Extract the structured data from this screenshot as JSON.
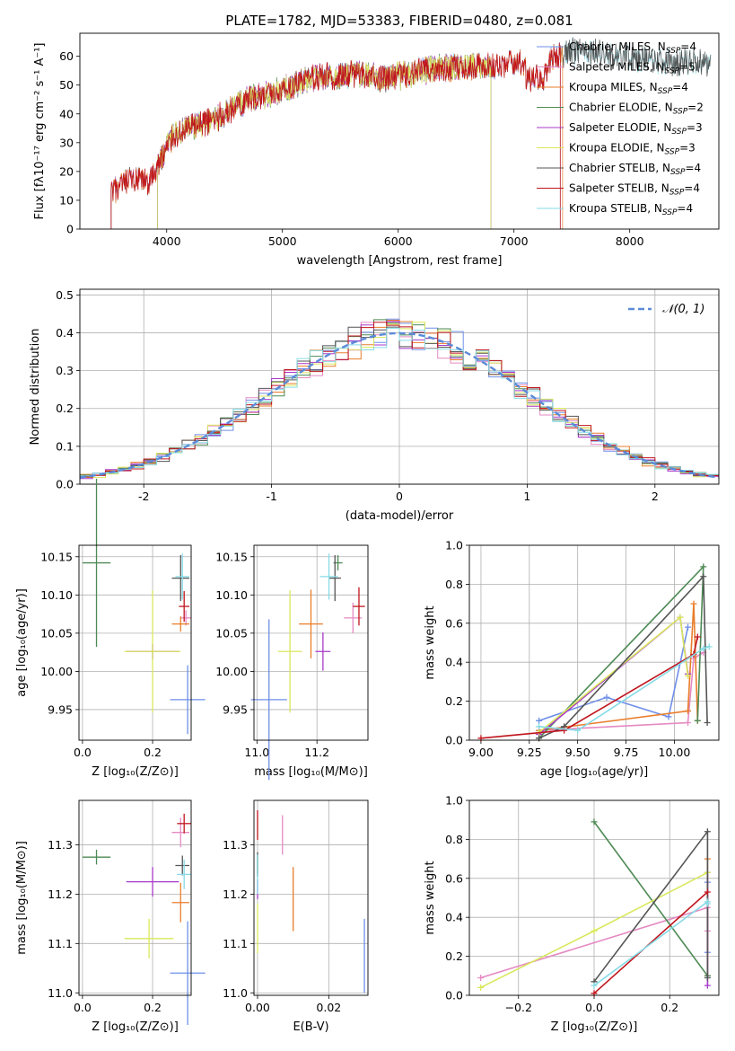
{
  "colors": {
    "Chabrier MILES": "#6f8fe8",
    "Salpeter MILES": "#e58ac3",
    "Kroupa MILES": "#e97d2b",
    "Chabrier ELODIE": "#4e8a55",
    "Salpeter ELODIE": "#a839c9",
    "Kroupa ELODIE": "#d9e85c",
    "Chabrier STELIB": "#555555",
    "Salpeter STELIB": "#c0151d",
    "Kroupa STELIB": "#86dbe6"
  },
  "chart_data": [
    {
      "id": "spectrum",
      "type": "line",
      "title": "PLATE=1782, MJD=53383, FIBERID=0480, z=0.081",
      "xlabel": "wavelength [Angstrom, rest frame]",
      "ylabel": "Flux [fλ10⁻¹⁷ erg cm⁻² s⁻¹ A⁻¹]",
      "xlim": [
        3250,
        8770
      ],
      "ylim": [
        0,
        68
      ],
      "xticks": [
        4000,
        5000,
        6000,
        7000,
        8000
      ],
      "yticks": [
        0,
        10,
        20,
        30,
        40,
        50,
        60
      ],
      "continuum": [
        [
          3500,
          12
        ],
        [
          3700,
          17
        ],
        [
          3850,
          16
        ],
        [
          3950,
          24
        ],
        [
          4050,
          32
        ],
        [
          4200,
          35
        ],
        [
          4350,
          37
        ],
        [
          4500,
          40
        ],
        [
          4700,
          45
        ],
        [
          4900,
          47
        ],
        [
          5100,
          50
        ],
        [
          5300,
          53
        ],
        [
          5500,
          53
        ],
        [
          5700,
          54
        ],
        [
          5900,
          52
        ],
        [
          6100,
          54
        ],
        [
          6300,
          56
        ],
        [
          6500,
          56
        ],
        [
          6700,
          57
        ],
        [
          6900,
          57
        ],
        [
          7100,
          58
        ],
        [
          7300,
          59
        ],
        [
          7500,
          62
        ],
        [
          7700,
          61
        ],
        [
          7900,
          60
        ],
        [
          8100,
          59
        ],
        [
          8300,
          58
        ]
      ],
      "series": [
        {
          "name": "Chabrier MILES",
          "label_sub": "SSP",
          "label_tail": "=4",
          "xstart": 3520,
          "xend": 7400
        },
        {
          "name": "Salpeter MILES",
          "label_sub": "SSP",
          "label_tail": "=5",
          "xstart": 3520,
          "xend": 7400
        },
        {
          "name": "Kroupa MILES",
          "label_sub": "SSP",
          "label_tail": "=4",
          "xstart": 3520,
          "xend": 7420
        },
        {
          "name": "Chabrier ELODIE",
          "label_sub": "SSP",
          "label_tail": "=2",
          "xstart": 3920,
          "xend": 6800
        },
        {
          "name": "Salpeter ELODIE",
          "label_sub": "SSP",
          "label_tail": "=3",
          "xstart": 3920,
          "xend": 6800
        },
        {
          "name": "Kroupa ELODIE",
          "label_sub": "SSP",
          "label_tail": "=3",
          "xstart": 3920,
          "xend": 6800
        },
        {
          "name": "Chabrier STELIB",
          "label_sub": "SSP",
          "label_tail": "=4",
          "xstart": 3520,
          "xend": 8700
        },
        {
          "name": "Salpeter STELIB",
          "label_sub": "SSP",
          "label_tail": "=4",
          "xstart": 3520,
          "xend": 7400
        },
        {
          "name": "Kroupa STELIB",
          "label_sub": "SSP",
          "label_tail": "=4",
          "xstart": 3520,
          "xend": 8700
        }
      ],
      "legend": "top-right"
    },
    {
      "id": "residuals",
      "type": "line",
      "xlabel": "(data-model)/error",
      "ylabel": "Normed distribution",
      "xlim": [
        -2.5,
        2.5
      ],
      "ylim": [
        0,
        0.515
      ],
      "xticks": [
        -2,
        -1,
        0,
        1,
        2
      ],
      "yticks": [
        0.0,
        0.1,
        0.2,
        0.3,
        0.4,
        0.5
      ],
      "bin_width": 0.1,
      "reference": {
        "name": "𝒩(0, 1)",
        "style": "dashed",
        "color": "#5b8bd8"
      },
      "series_count": 9,
      "legend": "top-right",
      "grid": true
    },
    {
      "id": "age_vs_Z",
      "type": "scatter",
      "xlabel": "Z [log₁₀(Z/Z⊙)]",
      "ylabel": "age  [log₁₀(age/yr)]",
      "xlim": [
        -0.01,
        0.31
      ],
      "ylim": [
        9.91,
        10.165
      ],
      "xticks": [
        0.0,
        0.2
      ],
      "yticks": [
        9.95,
        10.0,
        10.05,
        10.1,
        10.15
      ],
      "points": [
        {
          "series": "Chabrier MILES",
          "x": 0.3,
          "xerr": 0.05,
          "y": 9.963,
          "yerr": 0.045
        },
        {
          "series": "Salpeter MILES",
          "x": 0.295,
          "xerr": 0.015,
          "y": 10.07,
          "yerr": 0.01
        },
        {
          "series": "Kroupa MILES",
          "x": 0.28,
          "xerr": 0.025,
          "y": 10.062,
          "yerr": 0.01
        },
        {
          "series": "Chabrier ELODIE",
          "x": 0.04,
          "xerr": 0.04,
          "y": 10.142,
          "yerr": 0.11
        },
        {
          "series": "Salpeter ELODIE",
          "x": 0.2,
          "xerr": 0.075,
          "y": 10.026,
          "yerr": 0.01
        },
        {
          "series": "Kroupa ELODIE",
          "x": 0.2,
          "xerr": 0.08,
          "y": 10.026,
          "yerr": 0.08
        },
        {
          "series": "Chabrier STELIB",
          "x": 0.28,
          "xerr": 0.025,
          "y": 10.122,
          "yerr": 0.03
        },
        {
          "series": "Salpeter STELIB",
          "x": 0.29,
          "xerr": 0.015,
          "y": 10.085,
          "yerr": 0.02
        },
        {
          "series": "Kroupa STELIB",
          "x": 0.285,
          "xerr": 0.02,
          "y": 10.124,
          "yerr": 0.03
        }
      ],
      "grid": true
    },
    {
      "id": "age_vs_mass",
      "type": "scatter",
      "xlabel": "mass [log₁₀(M/M⊙)]",
      "ylabel": "",
      "xlim": [
        10.99,
        11.37
      ],
      "ylim": [
        9.91,
        10.165
      ],
      "xticks": [
        11.0,
        11.2
      ],
      "yticks": [
        9.95,
        10.0,
        10.05,
        10.1,
        10.15
      ],
      "points": [
        {
          "series": "Chabrier MILES",
          "x": 11.04,
          "xerr": 0.06,
          "y": 9.963,
          "yerr": 0.105
        },
        {
          "series": "Salpeter MILES",
          "x": 11.32,
          "xerr": 0.03,
          "y": 10.07,
          "yerr": 0.02
        },
        {
          "series": "Kroupa MILES",
          "x": 11.18,
          "xerr": 0.04,
          "y": 10.062,
          "yerr": 0.045
        },
        {
          "series": "Chabrier ELODIE",
          "x": 11.27,
          "xerr": 0.015,
          "y": 10.142,
          "yerr": 0.01
        },
        {
          "series": "Salpeter ELODIE",
          "x": 11.22,
          "xerr": 0.025,
          "y": 10.026,
          "yerr": 0.025
        },
        {
          "series": "Kroupa ELODIE",
          "x": 11.11,
          "xerr": 0.04,
          "y": 10.026,
          "yerr": 0.08
        },
        {
          "series": "Chabrier STELIB",
          "x": 11.26,
          "xerr": 0.02,
          "y": 10.122,
          "yerr": 0.03
        },
        {
          "series": "Salpeter STELIB",
          "x": 11.34,
          "xerr": 0.02,
          "y": 10.085,
          "yerr": 0.025
        },
        {
          "series": "Kroupa STELIB",
          "x": 11.24,
          "xerr": 0.03,
          "y": 10.124,
          "yerr": 0.03
        }
      ],
      "grid": true
    },
    {
      "id": "mass_vs_Z",
      "type": "scatter",
      "xlabel": "Z [log₁₀(Z/Z⊙)]",
      "ylabel": "mass [log₁₀(M/M⊙)]",
      "xlim": [
        -0.01,
        0.31
      ],
      "ylim": [
        10.995,
        11.39
      ],
      "xticks": [
        0.0,
        0.2
      ],
      "yticks": [
        11.0,
        11.1,
        11.2,
        11.3
      ],
      "points": [
        {
          "series": "Chabrier MILES",
          "x": 0.3,
          "xerr": 0.05,
          "y": 11.04,
          "yerr": 0.105
        },
        {
          "series": "Salpeter MILES",
          "x": 0.28,
          "xerr": 0.025,
          "y": 11.325,
          "yerr": 0.03
        },
        {
          "series": "Kroupa MILES",
          "x": 0.28,
          "xerr": 0.025,
          "y": 11.183,
          "yerr": 0.04
        },
        {
          "series": "Chabrier ELODIE",
          "x": 0.04,
          "xerr": 0.04,
          "y": 11.275,
          "yerr": 0.015
        },
        {
          "series": "Salpeter ELODIE",
          "x": 0.2,
          "xerr": 0.075,
          "y": 11.225,
          "yerr": 0.03
        },
        {
          "series": "Kroupa ELODIE",
          "x": 0.19,
          "xerr": 0.07,
          "y": 11.11,
          "yerr": 0.04
        },
        {
          "series": "Chabrier STELIB",
          "x": 0.285,
          "xerr": 0.02,
          "y": 11.258,
          "yerr": 0.02
        },
        {
          "series": "Salpeter STELIB",
          "x": 0.29,
          "xerr": 0.02,
          "y": 11.343,
          "yerr": 0.02
        },
        {
          "series": "Kroupa STELIB",
          "x": 0.29,
          "xerr": 0.02,
          "y": 11.24,
          "yerr": 0.03
        }
      ],
      "grid": true
    },
    {
      "id": "mass_vs_ebv",
      "type": "scatter",
      "xlabel": "E(B-V)",
      "ylabel": "",
      "xlim": [
        -0.001,
        0.031
      ],
      "ylim": [
        10.995,
        11.39
      ],
      "xticks": [
        0.0,
        0.02
      ],
      "yticks": [
        11.0,
        11.1,
        11.2,
        11.3
      ],
      "points": [
        {
          "series": "Chabrier MILES",
          "x": 0.03,
          "xerr": 0.0,
          "y": 11.075,
          "yerr": 0.075
        },
        {
          "series": "Salpeter MILES",
          "x": 0.007,
          "xerr": 0.0,
          "y": 11.32,
          "yerr": 0.04
        },
        {
          "series": "Kroupa MILES",
          "x": 0.01,
          "xerr": 0.0,
          "y": 11.19,
          "yerr": 0.065
        },
        {
          "series": "Chabrier ELODIE",
          "x": 0.0,
          "xerr": 0.0,
          "y": 11.26,
          "yerr": 0.02
        },
        {
          "series": "Salpeter ELODIE",
          "x": 0.0,
          "xerr": 0.0,
          "y": 11.21,
          "yerr": 0.02
        },
        {
          "series": "Kroupa ELODIE",
          "x": 0.0,
          "xerr": 0.0,
          "y": 11.13,
          "yerr": 0.05
        },
        {
          "series": "Chabrier STELIB",
          "x": 0.0,
          "xerr": 0.0,
          "y": 11.26,
          "yerr": 0.025
        },
        {
          "series": "Salpeter STELIB",
          "x": 0.0,
          "xerr": 0.0,
          "y": 11.34,
          "yerr": 0.03
        },
        {
          "series": "Kroupa STELIB",
          "x": 0.0,
          "xerr": 0.0,
          "y": 11.24,
          "yerr": 0.04
        }
      ],
      "grid": true
    },
    {
      "id": "weight_vs_age",
      "type": "line",
      "xlabel": "age  [log₁₀(age/yr)]",
      "ylabel": "mass weight",
      "xlim": [
        8.94,
        10.23
      ],
      "ylim": [
        0,
        1.0
      ],
      "xticks": [
        9.0,
        9.25,
        9.5,
        9.75,
        10.0
      ],
      "tick_labels": [
        "9.00",
        "9.25",
        "9.50",
        "9.75",
        "10.00"
      ],
      "yticks": [
        0.0,
        0.2,
        0.4,
        0.6,
        0.8,
        1.0
      ],
      "series": [
        {
          "name": "Chabrier MILES",
          "points": [
            [
              9.3,
              0.1
            ],
            [
              9.65,
              0.22
            ],
            [
              9.97,
              0.12
            ],
            [
              10.07,
              0.58
            ]
          ]
        },
        {
          "name": "Salpeter MILES",
          "points": [
            [
              9.3,
              0.05
            ],
            [
              10.07,
              0.09
            ],
            [
              10.1,
              0.42
            ],
            [
              10.15,
              0.45
            ]
          ]
        },
        {
          "name": "Kroupa MILES",
          "points": [
            [
              9.3,
              0.05
            ],
            [
              10.07,
              0.15
            ],
            [
              10.1,
              0.7
            ],
            [
              10.12,
              0.1
            ]
          ]
        },
        {
          "name": "Chabrier ELODIE",
          "points": [
            [
              9.3,
              0.01
            ],
            [
              10.15,
              0.89
            ],
            [
              10.12,
              0.1
            ]
          ]
        },
        {
          "name": "Salpeter ELODIE",
          "points": [
            [
              9.3,
              0.03
            ],
            [
              10.03,
              0.63
            ],
            [
              10.07,
              0.34
            ]
          ]
        },
        {
          "name": "Kroupa ELODIE",
          "points": [
            [
              9.3,
              0.04
            ],
            [
              10.03,
              0.63
            ],
            [
              10.07,
              0.33
            ]
          ]
        },
        {
          "name": "Chabrier STELIB",
          "points": [
            [
              9.3,
              0.01
            ],
            [
              9.43,
              0.07
            ],
            [
              10.15,
              0.84
            ],
            [
              10.17,
              0.09
            ]
          ]
        },
        {
          "name": "Salpeter STELIB",
          "points": [
            [
              9.0,
              0.01
            ],
            [
              9.43,
              0.05
            ],
            [
              10.1,
              0.44
            ],
            [
              10.12,
              0.53
            ]
          ]
        },
        {
          "name": "Kroupa STELIB",
          "points": [
            [
              9.3,
              0.07
            ],
            [
              9.5,
              0.05
            ],
            [
              10.15,
              0.47
            ],
            [
              10.18,
              0.48
            ]
          ]
        }
      ],
      "grid": true
    },
    {
      "id": "weight_vs_Z",
      "type": "line",
      "xlabel": "Z [log₁₀(Z/Z⊙)]",
      "ylabel": "mass weight",
      "xlim": [
        -0.33,
        0.33
      ],
      "ylim": [
        0,
        1.0
      ],
      "xticks": [
        -0.2,
        0.0,
        0.2
      ],
      "tick_labels": [
        "−0.2",
        "0.0",
        "0.2"
      ],
      "yticks": [
        0.0,
        0.2,
        0.4,
        0.6,
        0.8,
        1.0
      ],
      "series": [
        {
          "name": "Chabrier MILES",
          "points": [
            [
              0.3,
              0.22
            ],
            [
              0.3,
              0.58
            ]
          ]
        },
        {
          "name": "Salpeter MILES",
          "points": [
            [
              -0.3,
              0.09
            ],
            [
              0.3,
              0.45
            ],
            [
              0.3,
              0.33
            ]
          ]
        },
        {
          "name": "Kroupa MILES",
          "points": [
            [
              0.3,
              0.7
            ],
            [
              0.3,
              0.1
            ]
          ]
        },
        {
          "name": "Chabrier ELODIE",
          "points": [
            [
              0.0,
              0.89
            ],
            [
              0.3,
              0.1
            ]
          ]
        },
        {
          "name": "Salpeter ELODIE",
          "points": [
            [
              0.3,
              0.63
            ],
            [
              0.3,
              0.05
            ]
          ]
        },
        {
          "name": "Kroupa ELODIE",
          "points": [
            [
              -0.3,
              0.04
            ],
            [
              0.0,
              0.33
            ],
            [
              0.3,
              0.63
            ]
          ]
        },
        {
          "name": "Chabrier STELIB",
          "points": [
            [
              0.0,
              0.07
            ],
            [
              0.3,
              0.84
            ],
            [
              0.3,
              0.09
            ]
          ]
        },
        {
          "name": "Salpeter STELIB",
          "points": [
            [
              0.0,
              0.01
            ],
            [
              0.3,
              0.53
            ]
          ]
        },
        {
          "name": "Kroupa STELIB",
          "points": [
            [
              0.0,
              0.05
            ],
            [
              0.3,
              0.48
            ],
            [
              0.3,
              0.47
            ]
          ]
        }
      ],
      "grid": true
    }
  ]
}
